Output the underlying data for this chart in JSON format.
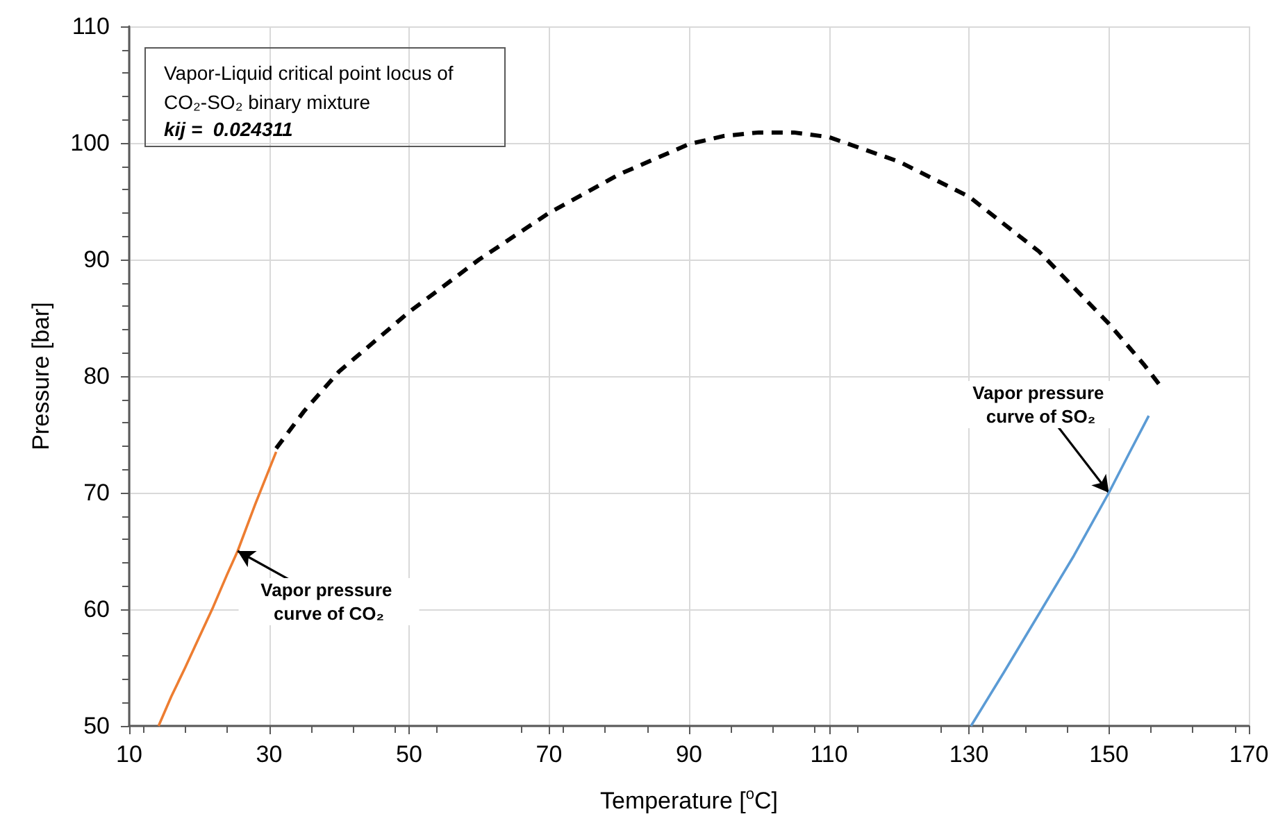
{
  "chart_data": {
    "type": "line",
    "title": "Vapor-Liquid critical point locus of CO₂-SO₂ binary mixture",
    "subtitle": "kij =  0.024311",
    "xlabel": "Temperature [$^{o}$C]",
    "ylabel": "Pressure [bar]",
    "xlim": [
      10,
      170
    ],
    "xticks": [
      10,
      30,
      50,
      70,
      90,
      110,
      130,
      150,
      170
    ],
    "ylim": [
      50,
      110
    ],
    "yticks": [
      50,
      60,
      70,
      80,
      90,
      100,
      110
    ],
    "grid": true,
    "marker": "none",
    "series": [
      {
        "color": "#ed7d31",
        "line_style": "solid",
        "x": [
          14.2,
          16,
          18,
          20,
          22,
          24,
          25.5,
          28,
          31
        ],
        "values": [
          50,
          52.5,
          55,
          57.6,
          60.2,
          63,
          65,
          69,
          73.5
        ]
      },
      {
        "color": "#000000",
        "line_style": "dashed",
        "x": [
          31,
          35,
          40,
          50,
          60,
          70,
          80,
          90,
          95,
          100,
          105,
          110,
          120,
          130,
          140,
          150,
          155,
          157.7
        ],
        "values": [
          73.8,
          77,
          80.4,
          85.5,
          90,
          94,
          97.3,
          99.9,
          100.6,
          100.9,
          100.9,
          100.5,
          98.4,
          95.4,
          90.7,
          84.5,
          81,
          78.9
        ]
      },
      {
        "color": "#5b9bd5",
        "line_style": "solid",
        "x": [
          130.3,
          135,
          140,
          145,
          150,
          153,
          155.7
        ],
        "values": [
          50,
          54.6,
          59.6,
          64.6,
          70,
          73.5,
          76.6
        ]
      }
    ],
    "annotations": [
      {
        "text": "Vapor pressure curve of CO₂",
        "x": 25.5,
        "y": 65
      },
      {
        "text": "Vapor pressure curve of SO₂",
        "x": 150,
        "y": 70
      }
    ]
  }
}
